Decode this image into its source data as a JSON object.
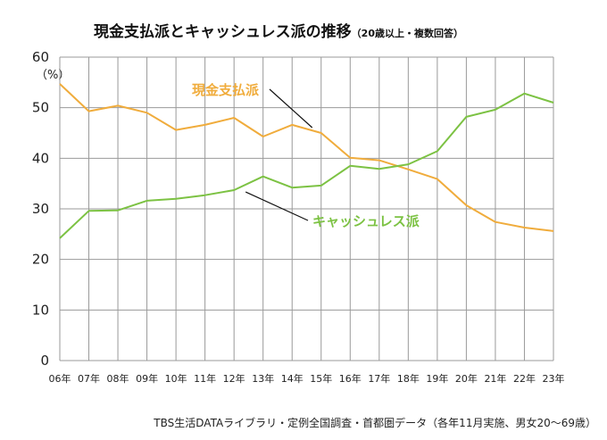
{
  "chart_data": {
    "type": "line",
    "title": "現金支払派とキャッシュレス派の推移",
    "subtitle": "（20歳以上・複数回答）",
    "unit_label": "（%）",
    "source": "TBS生活DATAライブラリ・定例全国調査・首都圏データ（各年11月実施、男女20〜69歳）",
    "categories": [
      "06年",
      "07年",
      "08年",
      "09年",
      "10年",
      "11年",
      "12年",
      "13年",
      "14年",
      "15年",
      "16年",
      "17年",
      "18年",
      "19年",
      "20年",
      "21年",
      "22年",
      "23年"
    ],
    "ylim": [
      0,
      60
    ],
    "yticks": [
      "0",
      "10",
      "20",
      "30",
      "40",
      "50",
      "60"
    ],
    "grid": true,
    "series": [
      {
        "name": "現金支払派",
        "color": "#f0ac3c",
        "values": [
          54.7,
          49.3,
          50.4,
          49.0,
          45.6,
          46.6,
          48.0,
          44.3,
          46.6,
          45.0,
          40.1,
          39.6,
          37.8,
          35.9,
          30.7,
          27.4,
          26.3,
          25.6
        ]
      },
      {
        "name": "キャッシュレス派",
        "color": "#7cc243",
        "values": [
          24.2,
          29.6,
          29.7,
          31.6,
          32.0,
          32.7,
          33.7,
          36.4,
          34.2,
          34.6,
          38.5,
          37.9,
          38.8,
          41.4,
          48.2,
          49.6,
          52.8,
          51.0
        ]
      }
    ]
  }
}
